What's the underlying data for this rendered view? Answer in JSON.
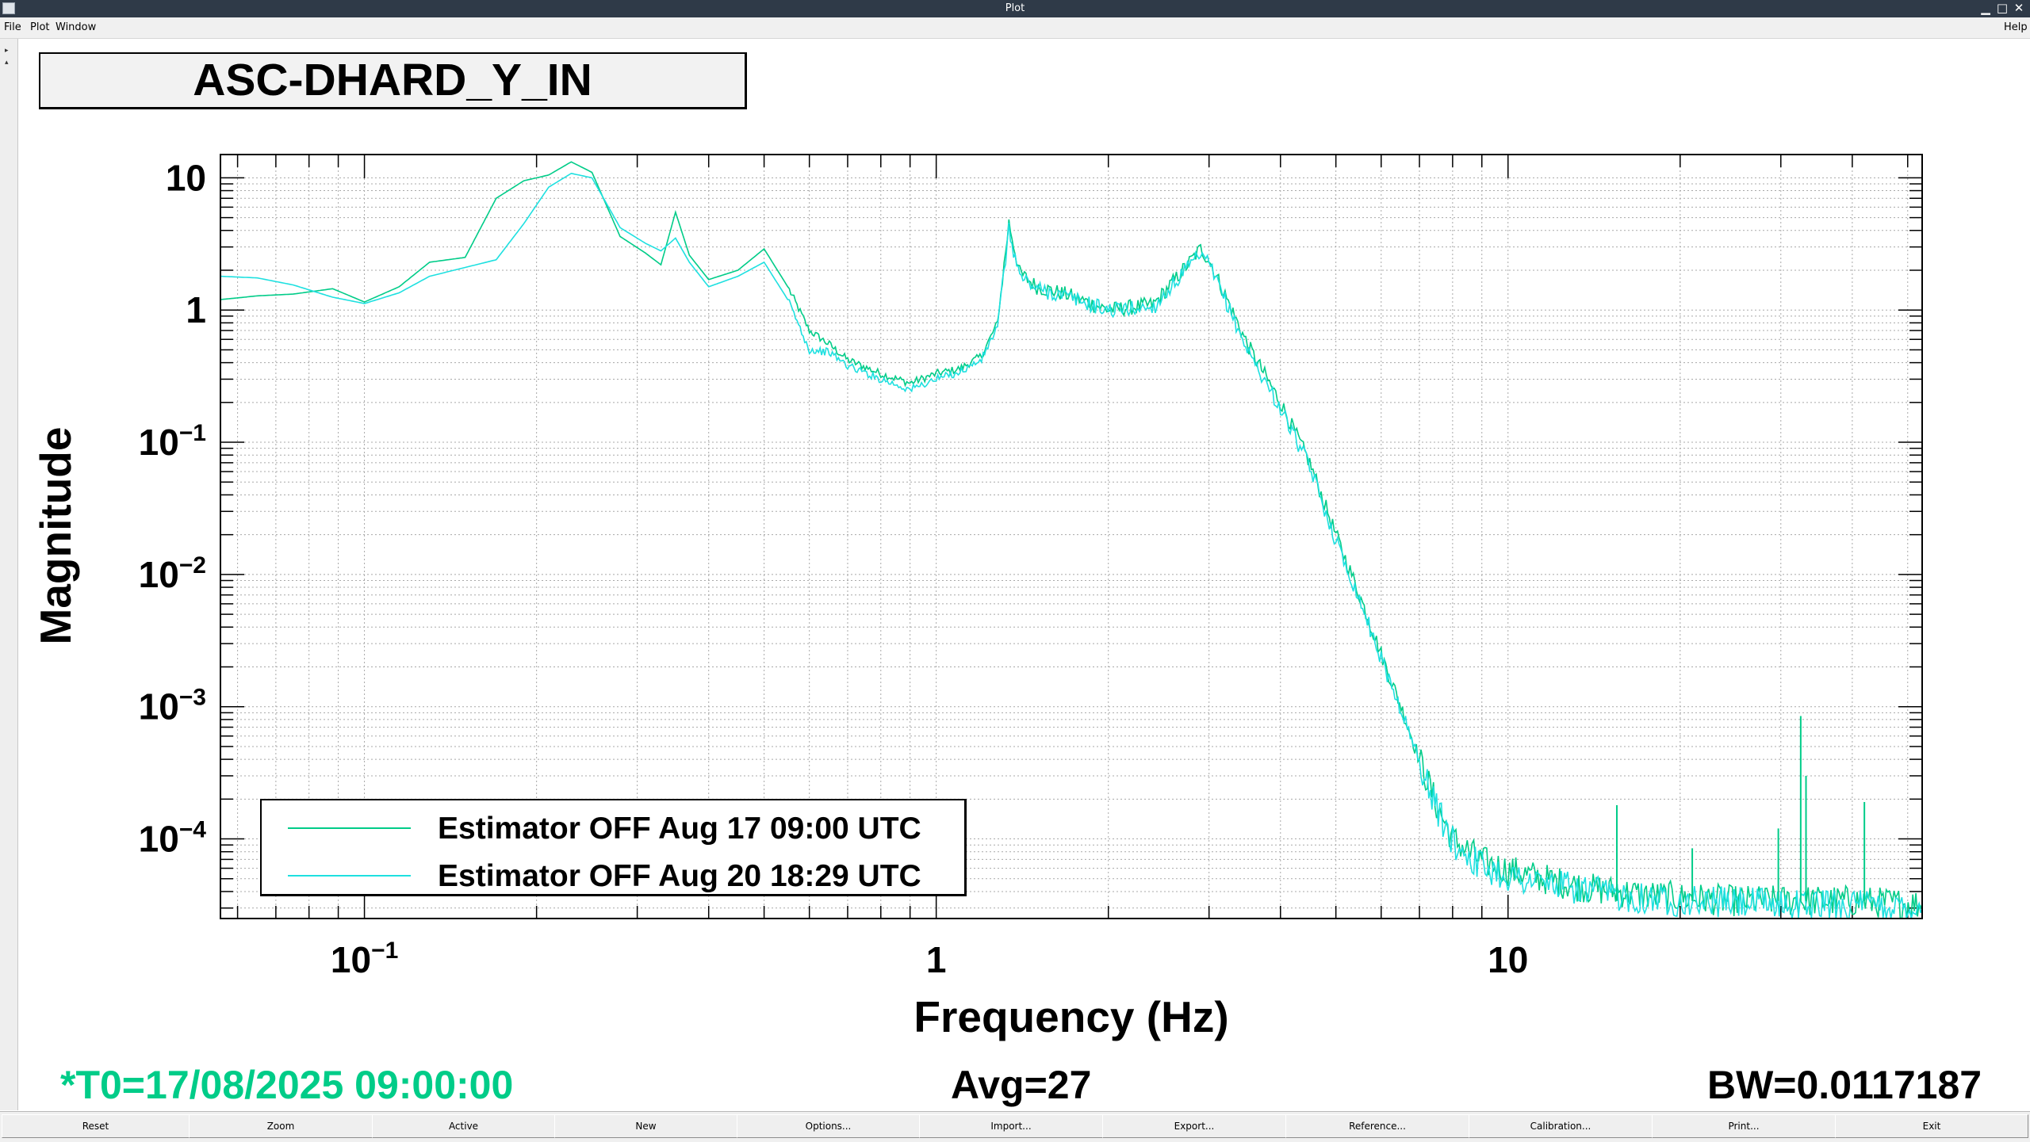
{
  "window": {
    "title": "Plot",
    "controls": {
      "minimize": "▁",
      "maximize": "□",
      "close": "✕"
    }
  },
  "menu": {
    "file": "File",
    "plot": "Plot",
    "window": "Window",
    "help": "Help"
  },
  "plot_title": "ASC-DHARD_Y_IN",
  "legend": [
    {
      "label": "Estimator OFF Aug 17 09:00 UTC",
      "color": "#00cc88"
    },
    {
      "label": "Estimator OFF Aug 20 18:29 UTC",
      "color": "#1ee0e0"
    }
  ],
  "status": {
    "t0": "*T0=17/08/2025 09:00:00",
    "avg": "Avg=27",
    "bw": "BW=0.0117187",
    "t0_color": "#00cc88"
  },
  "buttons": [
    "Reset",
    "Zoom",
    "Active",
    "New",
    "Options...",
    "Import...",
    "Export...",
    "Reference...",
    "Calibration...",
    "Print...",
    "Exit"
  ],
  "chart_data": {
    "type": "line",
    "title": "ASC-DHARD_Y_IN",
    "xlabel": "Frequency (Hz)",
    "ylabel": "Magnitude",
    "xscale": "log",
    "yscale": "log",
    "xlim": [
      0.056,
      53
    ],
    "ylim": [
      2.5e-05,
      15
    ],
    "grid": true,
    "legend_position": "bottom-left",
    "x_ticks": [
      {
        "value": 0.1,
        "base": "10",
        "exp": "−1"
      },
      {
        "value": 1,
        "base": "1",
        "exp": ""
      },
      {
        "value": 10,
        "base": "10",
        "exp": ""
      }
    ],
    "y_ticks": [
      {
        "value": 10,
        "base": "10",
        "exp": ""
      },
      {
        "value": 1,
        "base": "1",
        "exp": ""
      },
      {
        "value": 0.1,
        "base": "10",
        "exp": "−1"
      },
      {
        "value": 0.01,
        "base": "10",
        "exp": "−2"
      },
      {
        "value": 0.001,
        "base": "10",
        "exp": "−3"
      },
      {
        "value": 0.0001,
        "base": "10",
        "exp": "−4"
      }
    ],
    "series": [
      {
        "name": "Estimator OFF Aug 17 09:00 UTC",
        "color": "#00cc88",
        "points": [
          [
            0.056,
            1.2
          ],
          [
            0.065,
            1.28
          ],
          [
            0.075,
            1.32
          ],
          [
            0.088,
            1.45
          ],
          [
            0.1,
            1.15
          ],
          [
            0.115,
            1.5
          ],
          [
            0.13,
            2.3
          ],
          [
            0.15,
            2.5
          ],
          [
            0.17,
            7
          ],
          [
            0.19,
            9.5
          ],
          [
            0.21,
            10.5
          ],
          [
            0.23,
            13.2
          ],
          [
            0.25,
            11
          ],
          [
            0.28,
            3.6
          ],
          [
            0.31,
            2.7
          ],
          [
            0.33,
            2.2
          ],
          [
            0.35,
            5.5
          ],
          [
            0.37,
            2.6
          ],
          [
            0.4,
            1.7
          ],
          [
            0.45,
            2.0
          ],
          [
            0.5,
            2.9
          ],
          [
            0.55,
            1.5
          ],
          [
            0.6,
            0.7
          ],
          [
            0.65,
            0.55
          ],
          [
            0.7,
            0.42
          ],
          [
            0.8,
            0.33
          ],
          [
            0.9,
            0.28
          ],
          [
            1.0,
            0.33
          ],
          [
            1.1,
            0.36
          ],
          [
            1.2,
            0.45
          ],
          [
            1.28,
            0.8
          ],
          [
            1.34,
            4.6
          ],
          [
            1.4,
            1.9
          ],
          [
            1.5,
            1.5
          ],
          [
            1.7,
            1.3
          ],
          [
            2.0,
            1.0
          ],
          [
            2.4,
            1.1
          ],
          [
            2.7,
            2.0
          ],
          [
            2.9,
            2.9
          ],
          [
            3.0,
            2.4
          ],
          [
            3.2,
            1.3
          ],
          [
            3.5,
            0.55
          ],
          [
            4.0,
            0.2
          ],
          [
            4.5,
            0.07
          ],
          [
            5.0,
            0.02
          ],
          [
            5.5,
            0.007
          ],
          [
            6.0,
            0.0025
          ],
          [
            6.5,
            0.001
          ],
          [
            7.0,
            0.0004
          ],
          [
            7.5,
            0.00018
          ],
          [
            8.0,
            0.0001
          ],
          [
            9.0,
            6.8e-05
          ],
          [
            10.0,
            5.8e-05
          ],
          [
            12.0,
            4.8e-05
          ],
          [
            14.0,
            4.2e-05
          ],
          [
            17.0,
            3.8e-05
          ],
          [
            20.0,
            3.6e-05
          ],
          [
            25.0,
            3.4e-05
          ],
          [
            30.0,
            3.4e-05
          ],
          [
            32.0,
            3.4e-05
          ],
          [
            36.0,
            3.4e-05
          ],
          [
            40.0,
            3.4e-05
          ],
          [
            45.0,
            3.3e-05
          ],
          [
            53.0,
            3.2e-05
          ]
        ]
      },
      {
        "name": "Estimator OFF Aug 20 18:29 UTC",
        "color": "#1ee0e0",
        "points": [
          [
            0.056,
            1.8
          ],
          [
            0.065,
            1.75
          ],
          [
            0.075,
            1.55
          ],
          [
            0.088,
            1.25
          ],
          [
            0.1,
            1.12
          ],
          [
            0.115,
            1.35
          ],
          [
            0.13,
            1.8
          ],
          [
            0.15,
            2.1
          ],
          [
            0.17,
            2.4
          ],
          [
            0.19,
            4.5
          ],
          [
            0.21,
            8.5
          ],
          [
            0.23,
            10.8
          ],
          [
            0.25,
            10
          ],
          [
            0.28,
            4.2
          ],
          [
            0.31,
            3.2
          ],
          [
            0.33,
            2.8
          ],
          [
            0.35,
            3.5
          ],
          [
            0.37,
            2.3
          ],
          [
            0.4,
            1.5
          ],
          [
            0.45,
            1.8
          ],
          [
            0.5,
            2.3
          ],
          [
            0.55,
            1.2
          ],
          [
            0.6,
            0.5
          ],
          [
            0.65,
            0.48
          ],
          [
            0.7,
            0.38
          ],
          [
            0.8,
            0.3
          ],
          [
            0.9,
            0.25
          ],
          [
            1.0,
            0.3
          ],
          [
            1.1,
            0.34
          ],
          [
            1.2,
            0.42
          ],
          [
            1.28,
            0.75
          ],
          [
            1.34,
            4.0
          ],
          [
            1.4,
            1.8
          ],
          [
            1.5,
            1.45
          ],
          [
            1.7,
            1.25
          ],
          [
            2.0,
            1.0
          ],
          [
            2.4,
            1.05
          ],
          [
            2.7,
            1.9
          ],
          [
            2.9,
            2.6
          ],
          [
            3.0,
            2.2
          ],
          [
            3.2,
            1.2
          ],
          [
            3.5,
            0.5
          ],
          [
            4.0,
            0.18
          ],
          [
            4.5,
            0.065
          ],
          [
            5.0,
            0.018
          ],
          [
            5.5,
            0.0065
          ],
          [
            6.0,
            0.0023
          ],
          [
            6.5,
            0.00095
          ],
          [
            7.0,
            0.00038
          ],
          [
            7.5,
            0.00017
          ],
          [
            8.0,
            9.5e-05
          ],
          [
            9.0,
            6.2e-05
          ],
          [
            10.0,
            5.2e-05
          ],
          [
            12.0,
            4.5e-05
          ],
          [
            14.0,
            4e-05
          ],
          [
            17.0,
            3.6e-05
          ],
          [
            20.0,
            3.4e-05
          ],
          [
            25.0,
            3.3e-05
          ],
          [
            30.0,
            3.2e-05
          ],
          [
            32.0,
            3.2e-05
          ],
          [
            36.0,
            3.2e-05
          ],
          [
            40.0,
            3.2e-05
          ],
          [
            45.0,
            3.1e-05
          ],
          [
            53.0,
            3e-05
          ]
        ]
      }
    ]
  }
}
